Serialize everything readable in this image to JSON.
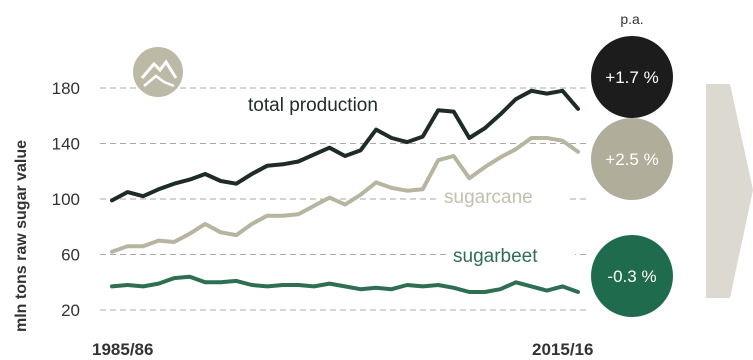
{
  "chart_data": {
    "type": "line",
    "ylabel": "mln tons raw sugar value",
    "xlabel": "",
    "x_tick_labels": [
      "1985/86",
      "2015/16"
    ],
    "x_start_year": 1985,
    "x_end_year": 2015,
    "ylim": [
      15,
      195
    ],
    "yticks": [
      20,
      60,
      100,
      140,
      180
    ],
    "grid": true,
    "x": [
      1985,
      1986,
      1987,
      1988,
      1989,
      1990,
      1991,
      1992,
      1993,
      1994,
      1995,
      1996,
      1997,
      1998,
      1999,
      2000,
      2001,
      2002,
      2003,
      2004,
      2005,
      2006,
      2007,
      2008,
      2009,
      2010,
      2011,
      2012,
      2013,
      2014,
      2015
    ],
    "series": [
      {
        "name": "total production",
        "color": "#1f2b26",
        "growth_label": "+1.7 %",
        "badge_color": "#1c1c1c",
        "values": [
          99,
          105,
          102,
          107,
          111,
          114,
          118,
          113,
          111,
          118,
          124,
          125,
          127,
          132,
          137,
          131,
          135,
          150,
          144,
          141,
          145,
          164,
          163,
          144,
          151,
          161,
          172,
          178,
          176,
          178,
          165
        ]
      },
      {
        "name": "sugarcane",
        "color": "#b7b4a0",
        "growth_label": "+2.5 %",
        "badge_color": "#b0ad9a",
        "values": [
          62,
          66,
          66,
          70,
          69,
          75,
          82,
          76,
          74,
          82,
          88,
          88,
          89,
          95,
          101,
          96,
          103,
          112,
          108,
          106,
          107,
          128,
          131,
          115,
          123,
          130,
          136,
          144,
          144,
          142,
          134
        ]
      },
      {
        "name": "sugarbeet",
        "color": "#2e6e52",
        "growth_label": "-0.3 %",
        "badge_color": "#1f6b4d",
        "values": [
          37,
          38,
          37,
          39,
          43,
          44,
          40,
          40,
          41,
          38,
          37,
          38,
          38,
          37,
          39,
          37,
          35,
          36,
          35,
          38,
          37,
          38,
          36,
          33,
          33,
          35,
          40,
          37,
          34,
          37,
          33
        ]
      }
    ],
    "growth_header": "p.a."
  }
}
